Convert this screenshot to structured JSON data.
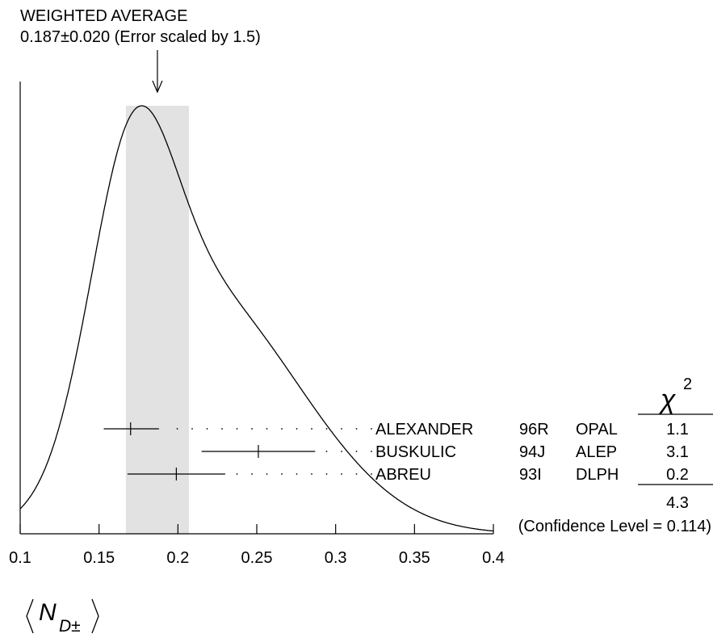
{
  "chart_data": {
    "type": "ideogram",
    "average": {
      "title": "WEIGHTED AVERAGE",
      "value": 0.187,
      "error": 0.02,
      "label": "0.187±0.020 (Error scaled by 1.5)"
    },
    "band": [
      0.167,
      0.207
    ],
    "xlim": [
      0.1,
      0.4
    ],
    "ticks": [
      0.1,
      0.15,
      0.2,
      0.25,
      0.3,
      0.35,
      0.4
    ],
    "tick_labels": [
      "0.1",
      "0.15",
      "0.2",
      "0.25",
      "0.3",
      "0.35",
      "0.4"
    ],
    "xlabel": {
      "base": "N",
      "sub": "D±"
    },
    "measurements": [
      {
        "author": "ALEXANDER",
        "ref": "96R",
        "experiment": "OPAL",
        "value": 0.17,
        "low": 0.153,
        "high": 0.188,
        "chi2": "1.1"
      },
      {
        "author": "BUSKULIC",
        "ref": "94J",
        "experiment": "ALEP",
        "value": 0.251,
        "low": 0.215,
        "high": 0.287,
        "chi2": "3.1"
      },
      {
        "author": "ABREU",
        "ref": "93I",
        "experiment": "DLPH",
        "value": 0.199,
        "low": 0.168,
        "high": 0.23,
        "chi2": "0.2"
      }
    ],
    "chi2_header": "χ",
    "chi2_power": "2",
    "chi2_total": "4.3",
    "confidence_text": "(Confidence Level = 0.114)"
  }
}
